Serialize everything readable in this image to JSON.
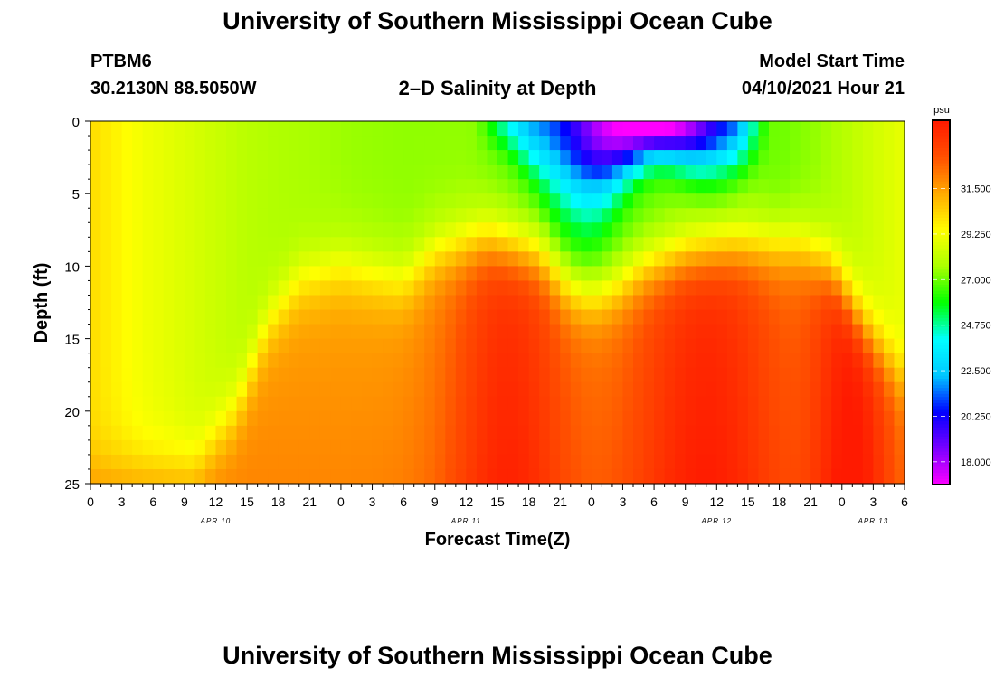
{
  "page": {
    "title": "University of Southern Mississippi Ocean Cube",
    "footer_title": "University of Southern Mississippi Ocean Cube",
    "station_id": "PTBM6",
    "station_coords": "30.2130N  88.5050W",
    "model_start_label": "Model Start Time",
    "model_start_value": "04/10/2021 Hour 21"
  },
  "chart_data": {
    "type": "heatmap",
    "title": "2–D Salinity at Depth",
    "xlabel": "Forecast Time(Z)",
    "ylabel": "Depth (ft)",
    "x_hours_range": [
      0,
      78
    ],
    "x_ticks": [
      "0",
      "3",
      "6",
      "9",
      "12",
      "15",
      "18",
      "21",
      "0",
      "3",
      "6",
      "9",
      "12",
      "15",
      "18",
      "21",
      "0",
      "3",
      "6",
      "9",
      "12",
      "15",
      "18",
      "21",
      "0",
      "3",
      "6"
    ],
    "x_minor_ticks_per_major": 3,
    "date_labels": [
      {
        "label": "APR 10",
        "hour": 12
      },
      {
        "label": "APR 11",
        "hour": 36
      },
      {
        "label": "APR 12",
        "hour": 60
      },
      {
        "label": "APR 13",
        "hour": 75
      }
    ],
    "ylim": [
      0,
      25
    ],
    "y_inverted": true,
    "y_ticks": [
      0,
      5,
      10,
      15,
      20,
      25
    ],
    "colorbar": {
      "unit": "psu",
      "vmin": 16.875,
      "vmax": 34.875,
      "tick_labels": [
        "18.000",
        "20.250",
        "22.500",
        "24.750",
        "27.000",
        "29.250",
        "31.500"
      ],
      "tick_values": [
        18.0,
        20.25,
        22.5,
        24.75,
        27.0,
        29.25,
        31.5
      ],
      "colors": [
        "#ff00ff",
        "#7a00ff",
        "#0000ff",
        "#00c8ff",
        "#00ffff",
        "#00ff00",
        "#aaff00",
        "#ffff00",
        "#ffaa00",
        "#ff5000",
        "#ff1a00"
      ]
    },
    "field_description_values": {
      "surface_fresh_lens": {
        "hours": [
          39,
          64
        ],
        "min_psu": 17.5,
        "max_depth_ft": 7
      },
      "deep_salty_core_psu": 34.5,
      "early_well_mixed_psu": 29.5
    }
  }
}
